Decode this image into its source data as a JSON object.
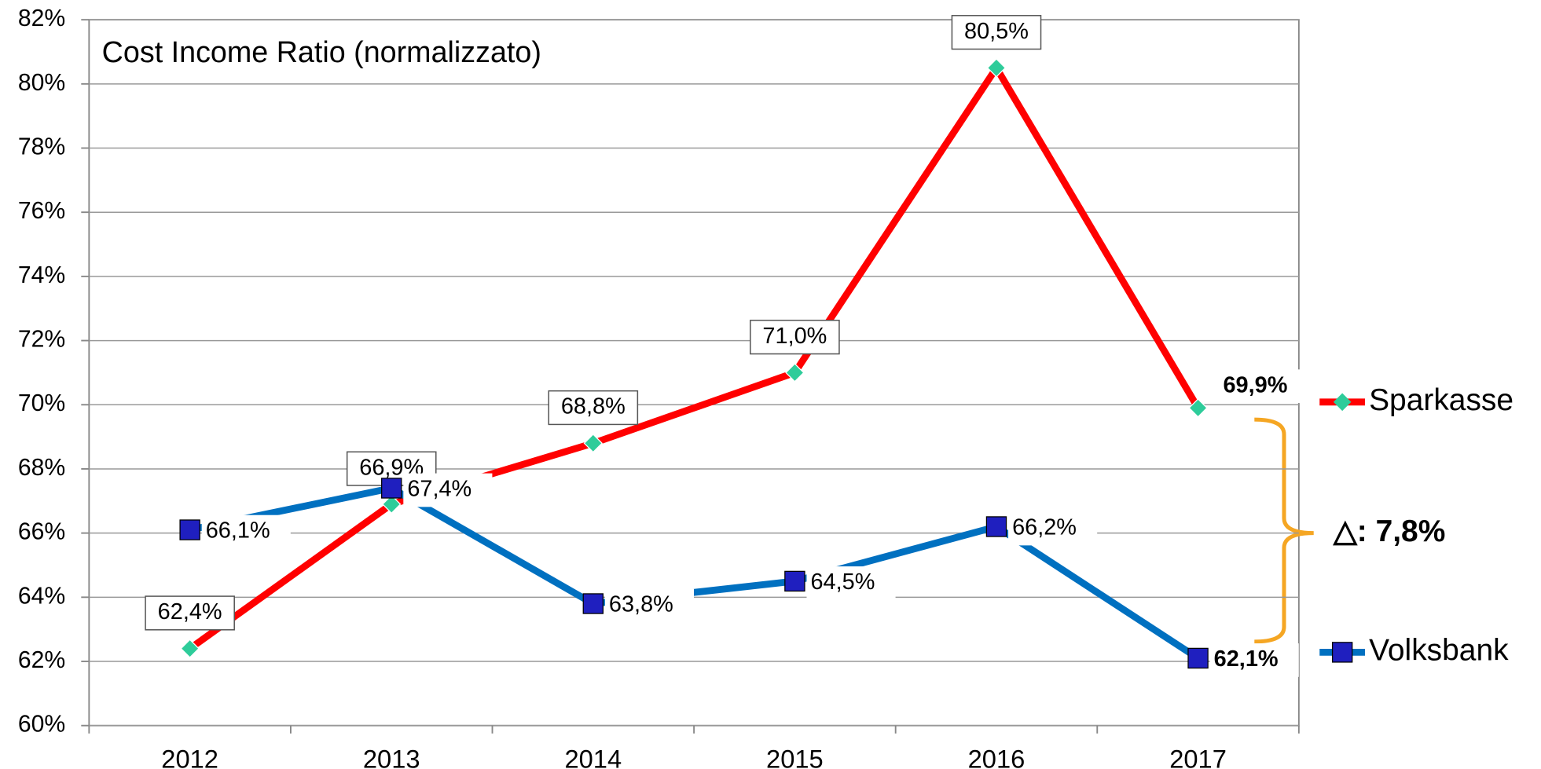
{
  "chart_data": {
    "type": "line",
    "title": "Cost Income Ratio (normalizzato)",
    "categories": [
      "2012",
      "2013",
      "2014",
      "2015",
      "2016",
      "2017"
    ],
    "series": [
      {
        "name": "Sparkasse",
        "color": "#ff0000",
        "marker_color": "#2ecc9a",
        "values": [
          62.4,
          66.9,
          68.8,
          71.0,
          80.5,
          69.9
        ],
        "value_labels": [
          "62,4%",
          "66,9%",
          "68,8%",
          "71,0%",
          "80,5%",
          "69,9%"
        ]
      },
      {
        "name": "Volksbank",
        "color": "#0070c0",
        "marker_color": "#1f1fbf",
        "values": [
          66.1,
          67.4,
          63.8,
          64.5,
          66.2,
          62.1
        ],
        "value_labels": [
          "66,1%",
          "67,4%",
          "63,8%",
          "64,5%",
          "66,2%",
          "62,1%"
        ]
      }
    ],
    "ylim": [
      60,
      82
    ],
    "yticks": [
      {
        "value": 60,
        "label": "60%"
      },
      {
        "value": 62,
        "label": "62%"
      },
      {
        "value": 64,
        "label": "64%"
      },
      {
        "value": 66,
        "label": "66%"
      },
      {
        "value": 68,
        "label": "68%"
      },
      {
        "value": 70,
        "label": "70%"
      },
      {
        "value": 72,
        "label": "72%"
      },
      {
        "value": 74,
        "label": "74%"
      },
      {
        "value": 76,
        "label": "76%"
      },
      {
        "value": 78,
        "label": "78%"
      },
      {
        "value": 80,
        "label": "80%"
      },
      {
        "value": 82,
        "label": "82%"
      }
    ],
    "grid": true,
    "legend": "right",
    "annotations": [
      {
        "text": "△: 7,8%"
      }
    ]
  }
}
